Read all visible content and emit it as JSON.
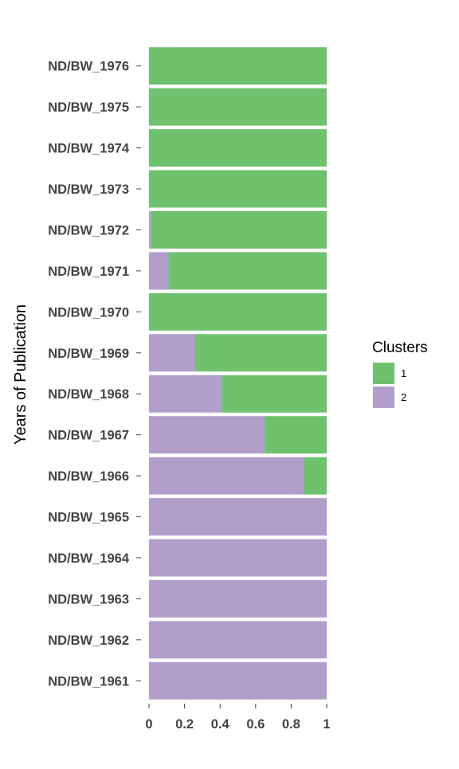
{
  "chart_data": {
    "type": "bar",
    "orientation": "horizontal",
    "stacked": true,
    "categories": [
      "ND/BW_1961",
      "ND/BW_1962",
      "ND/BW_1963",
      "ND/BW_1964",
      "ND/BW_1965",
      "ND/BW_1966",
      "ND/BW_1967",
      "ND/BW_1968",
      "ND/BW_1969",
      "ND/BW_1970",
      "ND/BW_1971",
      "ND/BW_1972",
      "ND/BW_1973",
      "ND/BW_1974",
      "ND/BW_1975",
      "ND/BW_1976"
    ],
    "series": [
      {
        "name": "2",
        "color": "#b19ecb",
        "values": [
          1,
          1,
          1,
          1,
          1,
          0.87,
          0.65,
          0.41,
          0.26,
          0,
          0.11,
          0.01,
          0,
          0,
          0,
          0
        ]
      },
      {
        "name": "1",
        "color": "#6ec26d",
        "values": [
          0,
          0,
          0,
          0,
          0,
          0.13,
          0.35,
          0.59,
          0.74,
          1,
          0.89,
          0.99,
          1,
          1,
          1,
          1
        ]
      }
    ],
    "xlim": [
      0,
      1
    ],
    "xticks": [
      "0",
      "0.2",
      "0.4",
      "0.6",
      "0.8",
      "1"
    ],
    "xlabel": "",
    "ylabel": "Years of Publication",
    "legend": {
      "title": "Clusters",
      "position": "right",
      "entries": [
        {
          "label": "1",
          "color": "#6ec26d"
        },
        {
          "label": "2",
          "color": "#b19ecb"
        }
      ]
    },
    "grid": false
  }
}
